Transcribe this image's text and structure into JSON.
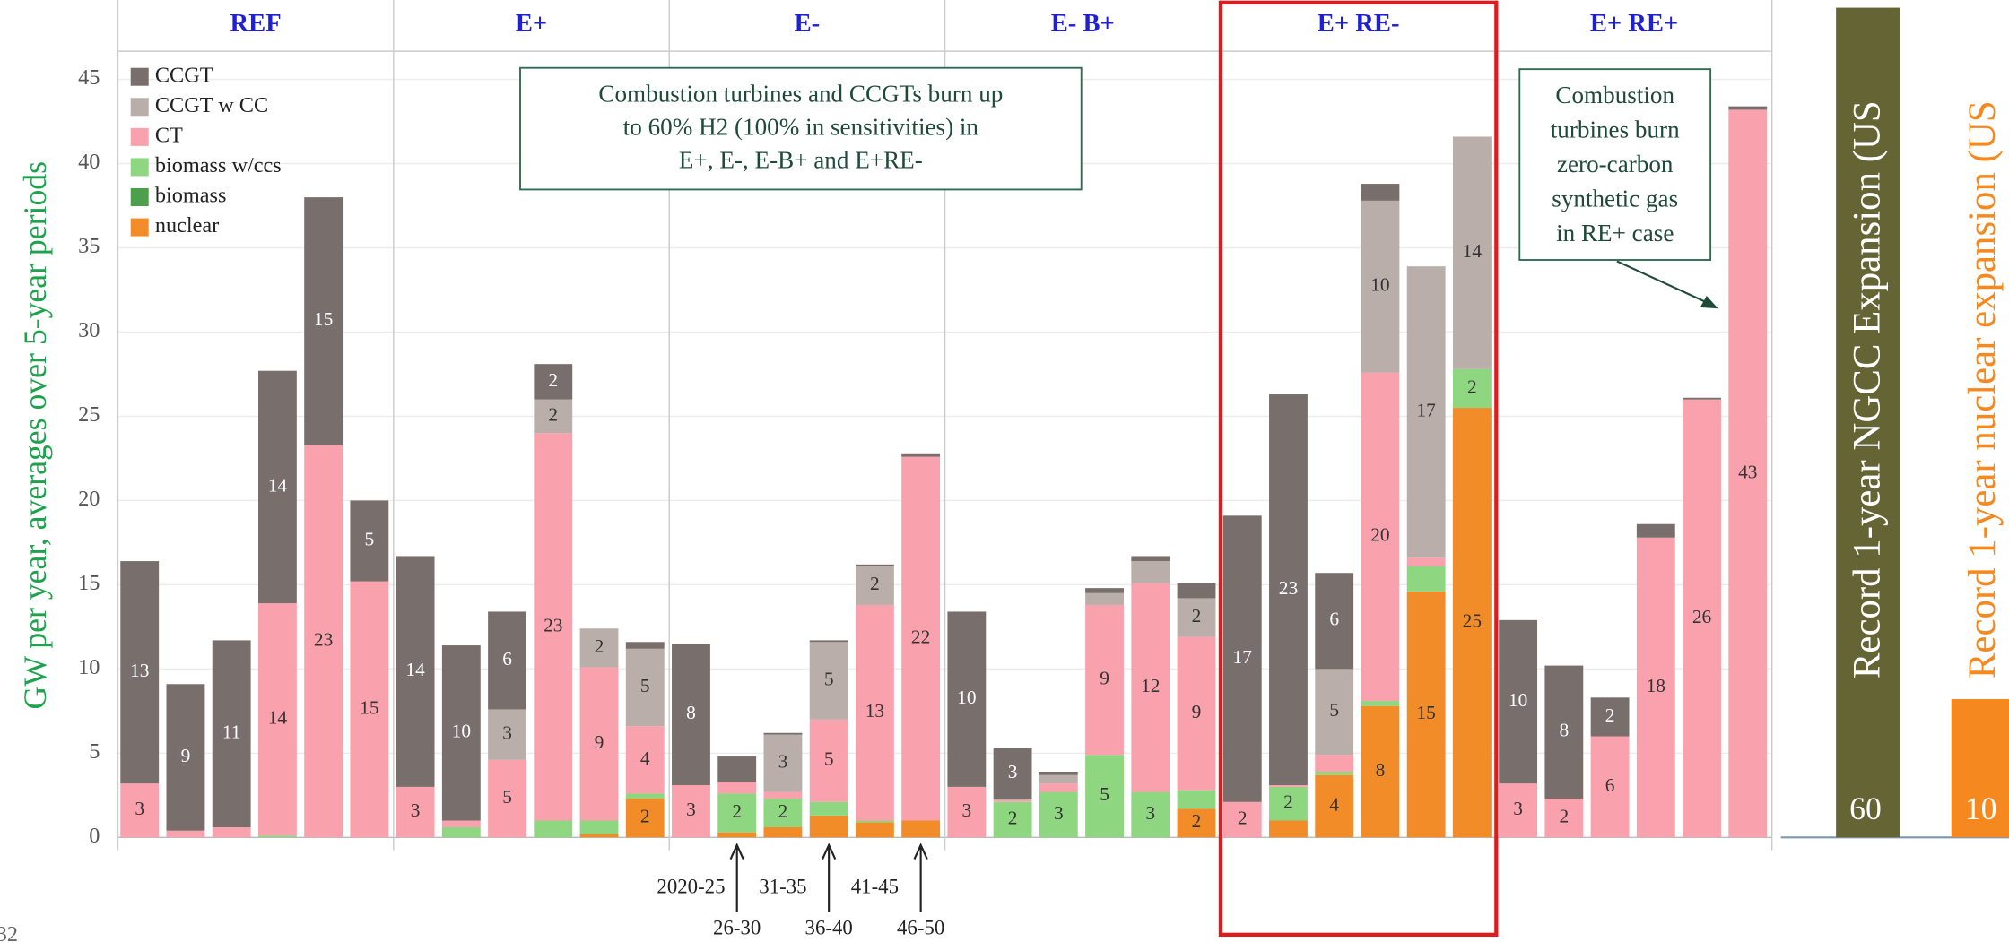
{
  "page_number": "32",
  "chart_data": [
    {
      "type": "stacked-bar",
      "y_label": "GW per year, averages over 5-year periods",
      "ylim": [
        0,
        45
      ],
      "yticks": [
        0,
        5,
        10,
        15,
        20,
        25,
        30,
        35,
        40,
        45
      ],
      "grid": true,
      "legend": "top-left",
      "categories": [
        "2020-25",
        "26-30",
        "31-35",
        "36-40",
        "41-45",
        "46-50"
      ],
      "series": [
        {
          "name": "CCGT",
          "color": "#786e6b"
        },
        {
          "name": "CCGT w CC",
          "color": "#b9aea9"
        },
        {
          "name": "CT",
          "color": "#f9a1ad"
        },
        {
          "name": "biomass w/ccs",
          "color": "#8fd681"
        },
        {
          "name": "biomass",
          "color": "#4e9f4b"
        },
        {
          "name": "nuclear",
          "color": "#f28c28"
        }
      ],
      "highlight_panel": 4,
      "panels": [
        {
          "title": "REF",
          "values": [
            [
              13.2,
              8.7,
              11.1,
              13.8,
              14.7,
              4.8
            ],
            [
              0,
              0,
              0,
              0,
              0,
              0
            ],
            [
              3.2,
              0.4,
              0.6,
              13.8,
              23.3,
              15.2
            ],
            [
              0,
              0,
              0,
              0.1,
              0,
              0
            ],
            [
              0,
              0,
              0,
              0,
              0,
              0
            ],
            [
              0,
              0,
              0,
              0,
              0,
              0
            ]
          ],
          "value_labels": [
            [
              "13",
              "9",
              "11",
              "14",
              "15",
              "5"
            ],
            [
              null,
              null,
              null,
              null,
              null,
              null
            ],
            [
              "3",
              null,
              null,
              "14",
              "23",
              "15"
            ],
            [
              null,
              null,
              null,
              null,
              null,
              null
            ],
            [
              null,
              null,
              null,
              null,
              null,
              null
            ],
            [
              null,
              null,
              null,
              null,
              null,
              null
            ]
          ]
        },
        {
          "title": "E+",
          "values": [
            [
              13.7,
              10.4,
              5.8,
              2.1,
              0,
              0.4
            ],
            [
              0,
              0,
              3.0,
              2.0,
              2.3,
              4.6
            ],
            [
              3.0,
              0.4,
              4.6,
              23.0,
              9.1,
              4.0
            ],
            [
              0,
              0.6,
              0,
              1.0,
              0.8,
              0.3
            ],
            [
              0,
              0,
              0,
              0,
              0,
              0
            ],
            [
              0,
              0,
              0,
              0,
              0.2,
              2.3
            ]
          ],
          "value_labels": [
            [
              "14",
              "10",
              "6",
              "2",
              null,
              null
            ],
            [
              null,
              null,
              "3",
              "2",
              "2",
              "5"
            ],
            [
              "3",
              null,
              "5",
              "23",
              "9",
              "4"
            ],
            [
              null,
              null,
              null,
              null,
              null,
              null
            ],
            [
              null,
              null,
              null,
              null,
              null,
              null
            ],
            [
              null,
              null,
              null,
              null,
              null,
              "2"
            ]
          ]
        },
        {
          "title": "E-",
          "values": [
            [
              8.4,
              1.5,
              0.1,
              0.1,
              0.1,
              0.2
            ],
            [
              0,
              0,
              3.4,
              4.6,
              2.3,
              0
            ],
            [
              3.1,
              0.7,
              0.4,
              4.9,
              12.8,
              21.6
            ],
            [
              0,
              2.3,
              1.7,
              0.8,
              0.1,
              0
            ],
            [
              0,
              0,
              0,
              0,
              0,
              0
            ],
            [
              0,
              0.3,
              0.6,
              1.3,
              0.9,
              1.0
            ]
          ],
          "value_labels": [
            [
              "8",
              null,
              null,
              null,
              null,
              null
            ],
            [
              null,
              null,
              "3",
              "5",
              "2",
              null
            ],
            [
              "3",
              null,
              null,
              "5",
              "13",
              "22"
            ],
            [
              null,
              "2",
              "2",
              null,
              null,
              null
            ],
            [
              null,
              null,
              null,
              null,
              null,
              null
            ],
            [
              null,
              null,
              null,
              null,
              null,
              null
            ]
          ]
        },
        {
          "title": "E- B+",
          "values": [
            [
              10.4,
              3.0,
              0.2,
              0.3,
              0.3,
              0.9
            ],
            [
              0,
              0.1,
              0.5,
              0.7,
              1.3,
              2.3
            ],
            [
              3.0,
              0.1,
              0.5,
              8.9,
              12.4,
              9.1
            ],
            [
              0,
              2.1,
              2.7,
              4.9,
              2.7,
              1.1
            ],
            [
              0,
              0,
              0,
              0,
              0,
              0
            ],
            [
              0,
              0,
              0,
              0,
              0,
              1.7
            ]
          ],
          "value_labels": [
            [
              "10",
              "3",
              null,
              null,
              null,
              null
            ],
            [
              null,
              null,
              null,
              null,
              null,
              "2"
            ],
            [
              "3",
              null,
              null,
              "9",
              "12",
              "9"
            ],
            [
              null,
              "2",
              "3",
              "5",
              "3",
              null
            ],
            [
              null,
              null,
              null,
              null,
              null,
              null
            ],
            [
              null,
              null,
              null,
              null,
              null,
              "2"
            ]
          ]
        },
        {
          "title": "E+ RE-",
          "values": [
            [
              17.0,
              23.2,
              5.7,
              1.0,
              0,
              0
            ],
            [
              0,
              0,
              5.1,
              10.2,
              17.3,
              13.8
            ],
            [
              2.1,
              0.1,
              1.0,
              19.5,
              0.5,
              0
            ],
            [
              0,
              2.0,
              0.2,
              0.3,
              1.5,
              2.3
            ],
            [
              0,
              0,
              0,
              0,
              0,
              0
            ],
            [
              0,
              1.0,
              3.7,
              7.8,
              14.6,
              25.5
            ]
          ],
          "value_labels": [
            [
              "17",
              "23",
              "6",
              null,
              null,
              null
            ],
            [
              null,
              null,
              "5",
              "10",
              "17",
              "14"
            ],
            [
              "2",
              null,
              null,
              "20",
              null,
              null
            ],
            [
              null,
              "2",
              null,
              null,
              null,
              "2"
            ],
            [
              null,
              null,
              null,
              null,
              null,
              null
            ],
            [
              null,
              null,
              "4",
              "8",
              "15",
              "25"
            ]
          ]
        },
        {
          "title": "E+ RE+",
          "values": [
            [
              9.7,
              7.9,
              2.3,
              0.8,
              0.1,
              0.2
            ],
            [
              0,
              0,
              0,
              0,
              0,
              0
            ],
            [
              3.2,
              2.3,
              6.0,
              17.8,
              26.0,
              43.2
            ],
            [
              0,
              0,
              0,
              0,
              0,
              0
            ],
            [
              0,
              0,
              0,
              0,
              0,
              0
            ],
            [
              0,
              0,
              0,
              0,
              0,
              0
            ]
          ],
          "value_labels": [
            [
              "10",
              "8",
              "2",
              null,
              null,
              null
            ],
            [
              null,
              null,
              null,
              null,
              null,
              null
            ],
            [
              "3",
              "2",
              "6",
              "18",
              "26",
              "43"
            ],
            [
              null,
              null,
              null,
              null,
              null,
              null
            ],
            [
              null,
              null,
              null,
              null,
              null,
              null
            ],
            [
              null,
              null,
              null,
              null,
              null,
              null
            ]
          ]
        }
      ],
      "annotations": [
        {
          "lines": [
            "Combustion turbines and CCGTs burn up",
            "to 60% H2 (100% in sensitivities) in",
            "E+, E-, E-B+ and E+RE-"
          ]
        },
        {
          "lines": [
            "Combustion",
            "turbines burn",
            "zero-carbon",
            "synthetic gas",
            "in RE+ case"
          ]
        }
      ]
    },
    {
      "type": "record-bar",
      "categories": [
        "Record 1-year NGCC Expansion (US",
        "Record 1-year nuclear expansion (US"
      ],
      "values": [
        60,
        10
      ],
      "colors": [
        "#656434",
        "#f5891f"
      ]
    }
  ]
}
